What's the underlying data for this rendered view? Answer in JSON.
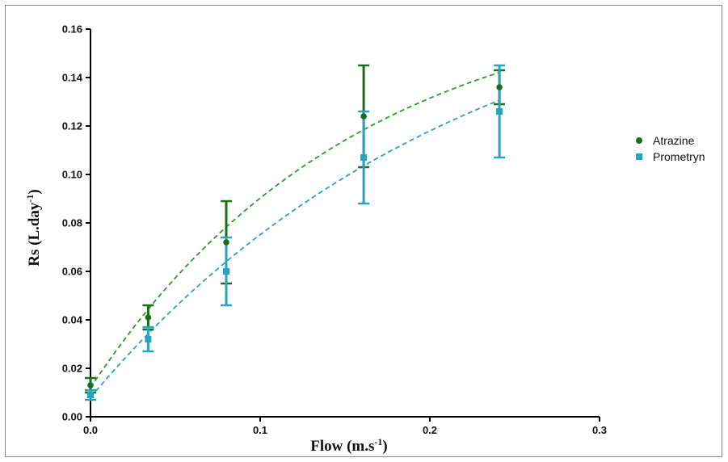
{
  "chart_data": {
    "type": "scatter",
    "title": "",
    "xlabel": "Flow (m.s",
    "xlabel_sup": "-1",
    "xlabel_close": ")",
    "ylabel": "Rs (L.day",
    "ylabel_sup": "-1",
    "ylabel_close": ")",
    "xlim": [
      0,
      0.3
    ],
    "ylim": [
      0,
      0.16
    ],
    "x_ticks": [
      0.0,
      0.1,
      0.2,
      0.3
    ],
    "x_tick_labels": [
      "0.0",
      "0.1",
      "0.2",
      "0.3"
    ],
    "y_ticks": [
      0.0,
      0.02,
      0.04,
      0.06,
      0.08,
      0.1,
      0.12,
      0.14,
      0.16
    ],
    "y_tick_labels": [
      "0.00",
      "0.02",
      "0.04",
      "0.06",
      "0.08",
      "0.10",
      "0.12",
      "0.14",
      "0.16"
    ],
    "grid": false,
    "legend_position": "right",
    "series": [
      {
        "name": "Atrazine",
        "color": "#1a6e1a",
        "fit_color": "#2e9a2e",
        "marker": "circle",
        "x": [
          0.0,
          0.034,
          0.08,
          0.161,
          0.241
        ],
        "y": [
          0.013,
          0.041,
          0.072,
          0.124,
          0.136
        ],
        "err": [
          0.003,
          0.005,
          0.017,
          0.021,
          0.007
        ],
        "fit": {
          "type": "one-phase-association",
          "ymax": 0.1775,
          "k": 6.4,
          "y0": 0.012
        }
      },
      {
        "name": "Prometryn",
        "color": "#26a3c0",
        "fit_color": "#2f9fc2",
        "marker": "square",
        "x": [
          0.0,
          0.034,
          0.08,
          0.161,
          0.241
        ],
        "y": [
          0.009,
          0.032,
          0.06,
          0.107,
          0.126
        ],
        "err": [
          0.002,
          0.005,
          0.014,
          0.019,
          0.019
        ],
        "fit": {
          "type": "one-phase-association",
          "ymax": 0.1933,
          "k": 4.5,
          "y0": 0.008
        }
      }
    ]
  }
}
